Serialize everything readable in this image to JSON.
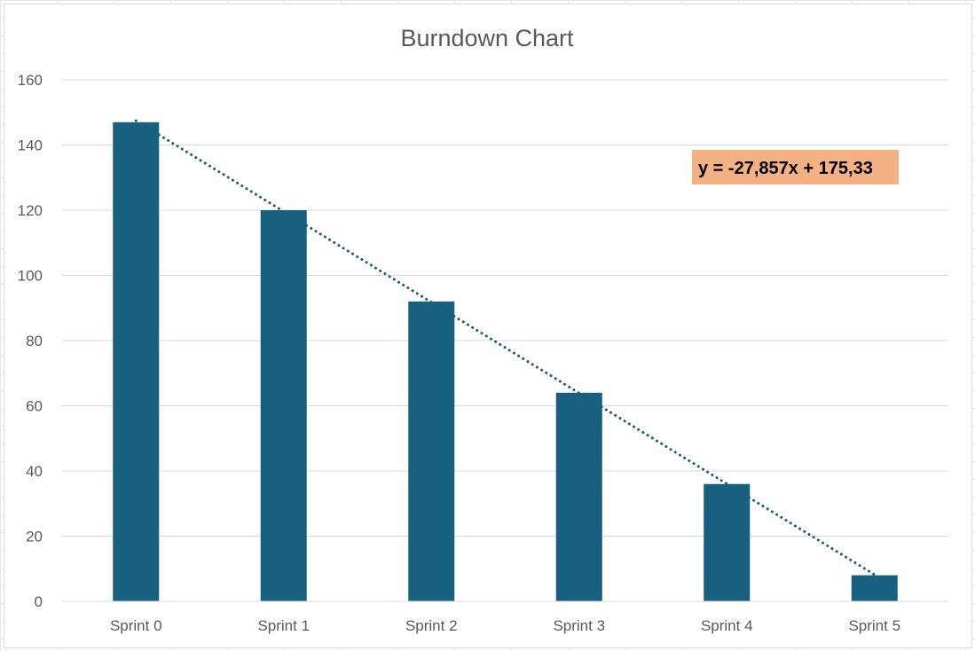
{
  "chart_data": {
    "type": "bar",
    "title": "Burndown Chart",
    "xlabel": "",
    "ylabel": "",
    "categories": [
      "Sprint 0",
      "Sprint 1",
      "Sprint 2",
      "Sprint 3",
      "Sprint 4",
      "Sprint 5"
    ],
    "values": [
      147,
      120,
      92,
      64,
      36,
      8
    ],
    "ylim": [
      0,
      160
    ],
    "yticks": [
      0,
      20,
      40,
      60,
      80,
      100,
      120,
      140,
      160
    ],
    "grid": true,
    "legend": "none",
    "bar_color": "#17607f",
    "trendline": {
      "type": "linear",
      "style": "dotted",
      "color": "#1a5e75",
      "slope": -27.857,
      "intercept": 175.33,
      "equation_label": "y = -27,857x + 175,33",
      "label_background": "#f4b183"
    }
  }
}
